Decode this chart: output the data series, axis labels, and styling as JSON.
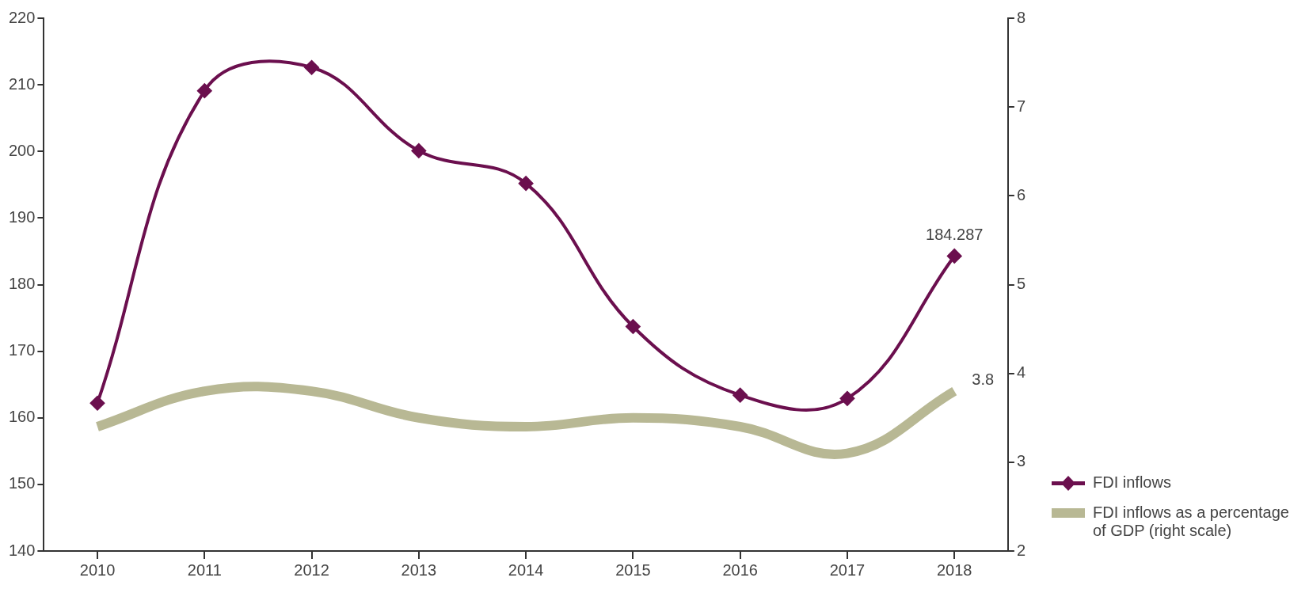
{
  "chart_data": {
    "type": "line",
    "categories": [
      "2010",
      "2011",
      "2012",
      "2013",
      "2014",
      "2015",
      "2016",
      "2017",
      "2018"
    ],
    "series": [
      {
        "name": "FDI inflows",
        "color": "#6b0f4e",
        "marker": "diamond",
        "values": [
          162.2,
          209.1,
          212.6,
          200.1,
          195.2,
          173.7,
          163.4,
          162.9,
          184.287
        ],
        "value_labels": [
          null,
          null,
          null,
          null,
          null,
          null,
          null,
          null,
          "184.287"
        ]
      },
      {
        "name": "FDI inflows as a percentage of GDP (right scale)",
        "color": "#b8b894",
        "axis": "y2",
        "marker": "none",
        "values": [
          3.4,
          3.8,
          3.8,
          3.5,
          3.4,
          3.5,
          3.4,
          3.1,
          3.8
        ],
        "value_labels": [
          null,
          null,
          null,
          null,
          null,
          null,
          null,
          null,
          "3.8"
        ]
      }
    ],
    "ylim": [
      140,
      220
    ],
    "yticks": [
      140,
      150,
      160,
      170,
      180,
      190,
      200,
      210,
      220
    ],
    "y2lim": [
      2,
      8
    ],
    "y2ticks": [
      2,
      3,
      4,
      5,
      6,
      7,
      8
    ],
    "grid": false,
    "legend": "bottom right"
  }
}
